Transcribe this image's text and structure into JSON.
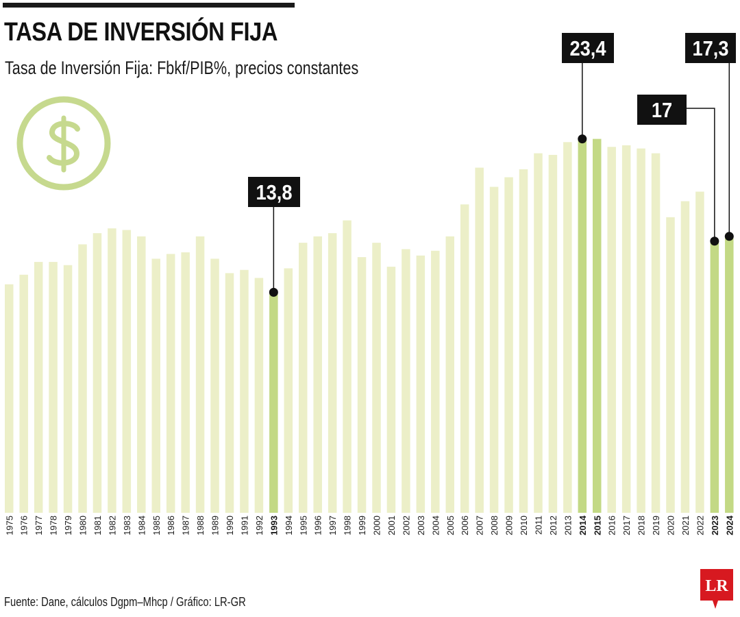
{
  "header": {
    "title": "TASA DE INVERSIÓN FIJA",
    "subtitle": "Tasa de Inversión Fija: Fbkf/PIB%, precios constantes"
  },
  "icon": {
    "name": "dollar-circle-icon",
    "color": "#c6d98e"
  },
  "footer": {
    "source": "Fuente: Dane, cálculos Dgpm–Mhcp / Gráfico: LR-GR",
    "logo_text": "LR",
    "logo_color": "#d71920"
  },
  "colors": {
    "bar": "#ecefc8",
    "bar_highlight": "#c3d985",
    "callout_bg": "#111111",
    "callout_text": "#ffffff"
  },
  "chart_data": {
    "type": "bar",
    "title": "TASA DE INVERSIÓN FIJA",
    "subtitle": "Tasa de Inversión Fija: Fbkf/PIB%, precios constantes",
    "xlabel": "",
    "ylabel": "",
    "ylim": [
      0,
      25.4
    ],
    "grid": false,
    "categories": [
      "1975",
      "1976",
      "1977",
      "1978",
      "1979",
      "1980",
      "1981",
      "1982",
      "1983",
      "1984",
      "1985",
      "1986",
      "1987",
      "1988",
      "1989",
      "1990",
      "1991",
      "1992",
      "1993",
      "1994",
      "1995",
      "1996",
      "1997",
      "1998",
      "1999",
      "2000",
      "2001",
      "2002",
      "2003",
      "2004",
      "2005",
      "2006",
      "2007",
      "2008",
      "2009",
      "2010",
      "2011",
      "2012",
      "2013",
      "2014",
      "2015",
      "2016",
      "2017",
      "2018",
      "2019",
      "2020",
      "2021",
      "2022",
      "2023",
      "2024"
    ],
    "values": [
      14.3,
      14.9,
      15.7,
      15.7,
      15.5,
      16.8,
      17.5,
      17.8,
      17.7,
      17.3,
      15.9,
      16.2,
      16.3,
      17.3,
      15.9,
      15.0,
      15.2,
      14.7,
      13.8,
      15.3,
      16.9,
      17.3,
      17.5,
      18.3,
      16.0,
      16.9,
      15.4,
      16.5,
      16.1,
      16.4,
      17.3,
      19.3,
      21.6,
      20.4,
      21.0,
      21.5,
      22.5,
      22.4,
      23.2,
      23.4,
      23.4,
      22.9,
      23.0,
      22.8,
      22.5,
      18.5,
      19.5,
      20.1,
      17.0,
      17.3
    ],
    "highlighted": [
      "1993",
      "2014",
      "2015",
      "2023",
      "2024"
    ],
    "annotations": [
      {
        "category": "1993",
        "label": "13,8"
      },
      {
        "category": "2014",
        "label": "23,4"
      },
      {
        "category": "2023",
        "label": "17"
      },
      {
        "category": "2024",
        "label": "17,3"
      }
    ]
  }
}
